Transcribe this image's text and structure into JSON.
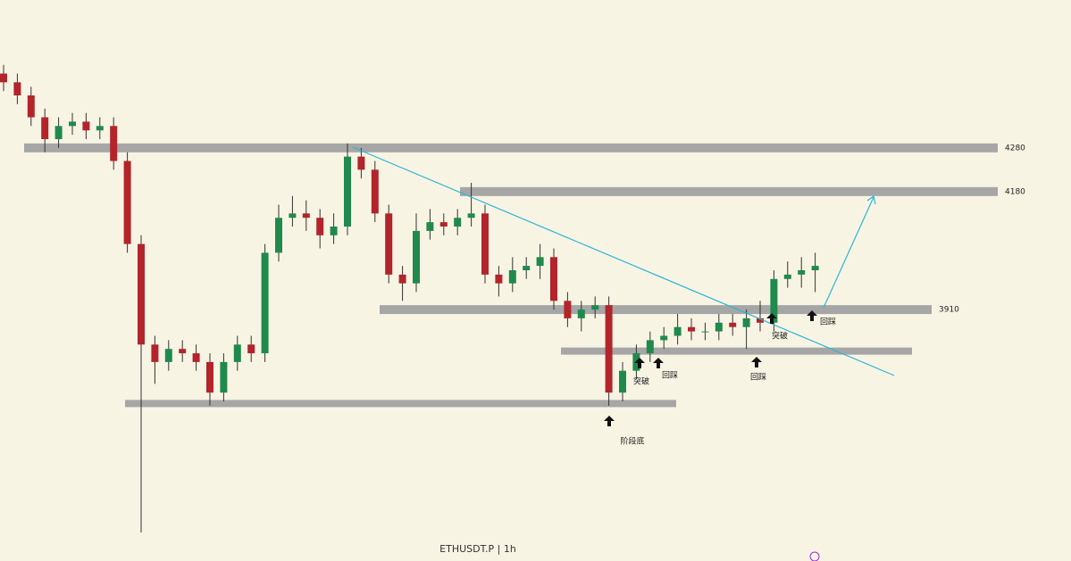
{
  "chart_data": {
    "type": "candlestick",
    "footer": "ETHUSDT.P  |  1h",
    "ylim": [
      3400,
      4600
    ],
    "up_color": "#1f8a4c",
    "down_color": "#b3242b",
    "level_color": "#a6a6a6",
    "trend_color": "#29b6d6",
    "open": [
      4450,
      4430,
      4400,
      4350,
      4300,
      4330,
      4340,
      4320,
      4330,
      4250,
      4060,
      3830,
      3790,
      3820,
      3810,
      3790,
      3720,
      3790,
      3830,
      3810,
      4040,
      4120,
      4130,
      4120,
      4080,
      4100,
      4260,
      4230,
      4130,
      3990,
      3970,
      4090,
      4110,
      4100,
      4120,
      4130,
      3990,
      3970,
      4000,
      4010,
      4030,
      3930,
      3890,
      3910,
      3920,
      3720,
      3770,
      3810,
      3840,
      3850,
      3870,
      3860,
      3860,
      3880,
      3870,
      3890,
      3880,
      3980,
      3990,
      4000
    ],
    "high": [
      4470,
      4450,
      4420,
      4370,
      4350,
      4360,
      4360,
      4350,
      4350,
      4270,
      4080,
      3850,
      3840,
      3840,
      3830,
      3810,
      3810,
      3850,
      3850,
      4060,
      4150,
      4170,
      4160,
      4140,
      4130,
      4290,
      4280,
      4250,
      4150,
      4010,
      4130,
      4140,
      4130,
      4140,
      4200,
      4150,
      4010,
      4030,
      4030,
      4060,
      4050,
      3950,
      3930,
      3940,
      3940,
      3790,
      3830,
      3860,
      3870,
      3900,
      3890,
      3880,
      3900,
      3900,
      3910,
      3930,
      4000,
      4020,
      4030,
      4040
    ],
    "low": [
      4410,
      4380,
      4330,
      4270,
      4280,
      4310,
      4300,
      4300,
      4230,
      4040,
      3400,
      3740,
      3770,
      3790,
      3770,
      3690,
      3700,
      3770,
      3790,
      3790,
      4020,
      4100,
      4090,
      4050,
      4060,
      4080,
      4210,
      4110,
      3970,
      3930,
      3950,
      4070,
      4080,
      4080,
      4100,
      3970,
      3940,
      3950,
      3980,
      3980,
      3910,
      3870,
      3860,
      3890,
      3690,
      3700,
      3750,
      3790,
      3820,
      3830,
      3840,
      3840,
      3840,
      3850,
      3820,
      3860,
      3860,
      3960,
      3960,
      3950
    ],
    "close": [
      4430,
      4400,
      4350,
      4300,
      4330,
      4340,
      4320,
      4330,
      4250,
      4060,
      3830,
      3790,
      3820,
      3810,
      3790,
      3720,
      3790,
      3830,
      3810,
      4040,
      4120,
      4130,
      4120,
      4080,
      4100,
      4260,
      4230,
      4130,
      3990,
      3970,
      4090,
      4110,
      4100,
      4120,
      4130,
      3990,
      3970,
      4000,
      4010,
      4030,
      3930,
      3890,
      3910,
      3920,
      3720,
      3770,
      3810,
      3840,
      3850,
      3870,
      3860,
      3860,
      3880,
      3870,
      3890,
      3880,
      3980,
      3990,
      4000,
      4010
    ],
    "labeled_levels": [
      4280,
      4180,
      3910
    ],
    "zones": [
      3815,
      3695
    ],
    "annotations": [
      "阶段底",
      "突破",
      "回踩",
      "回踩",
      "突破",
      "回踩"
    ]
  }
}
